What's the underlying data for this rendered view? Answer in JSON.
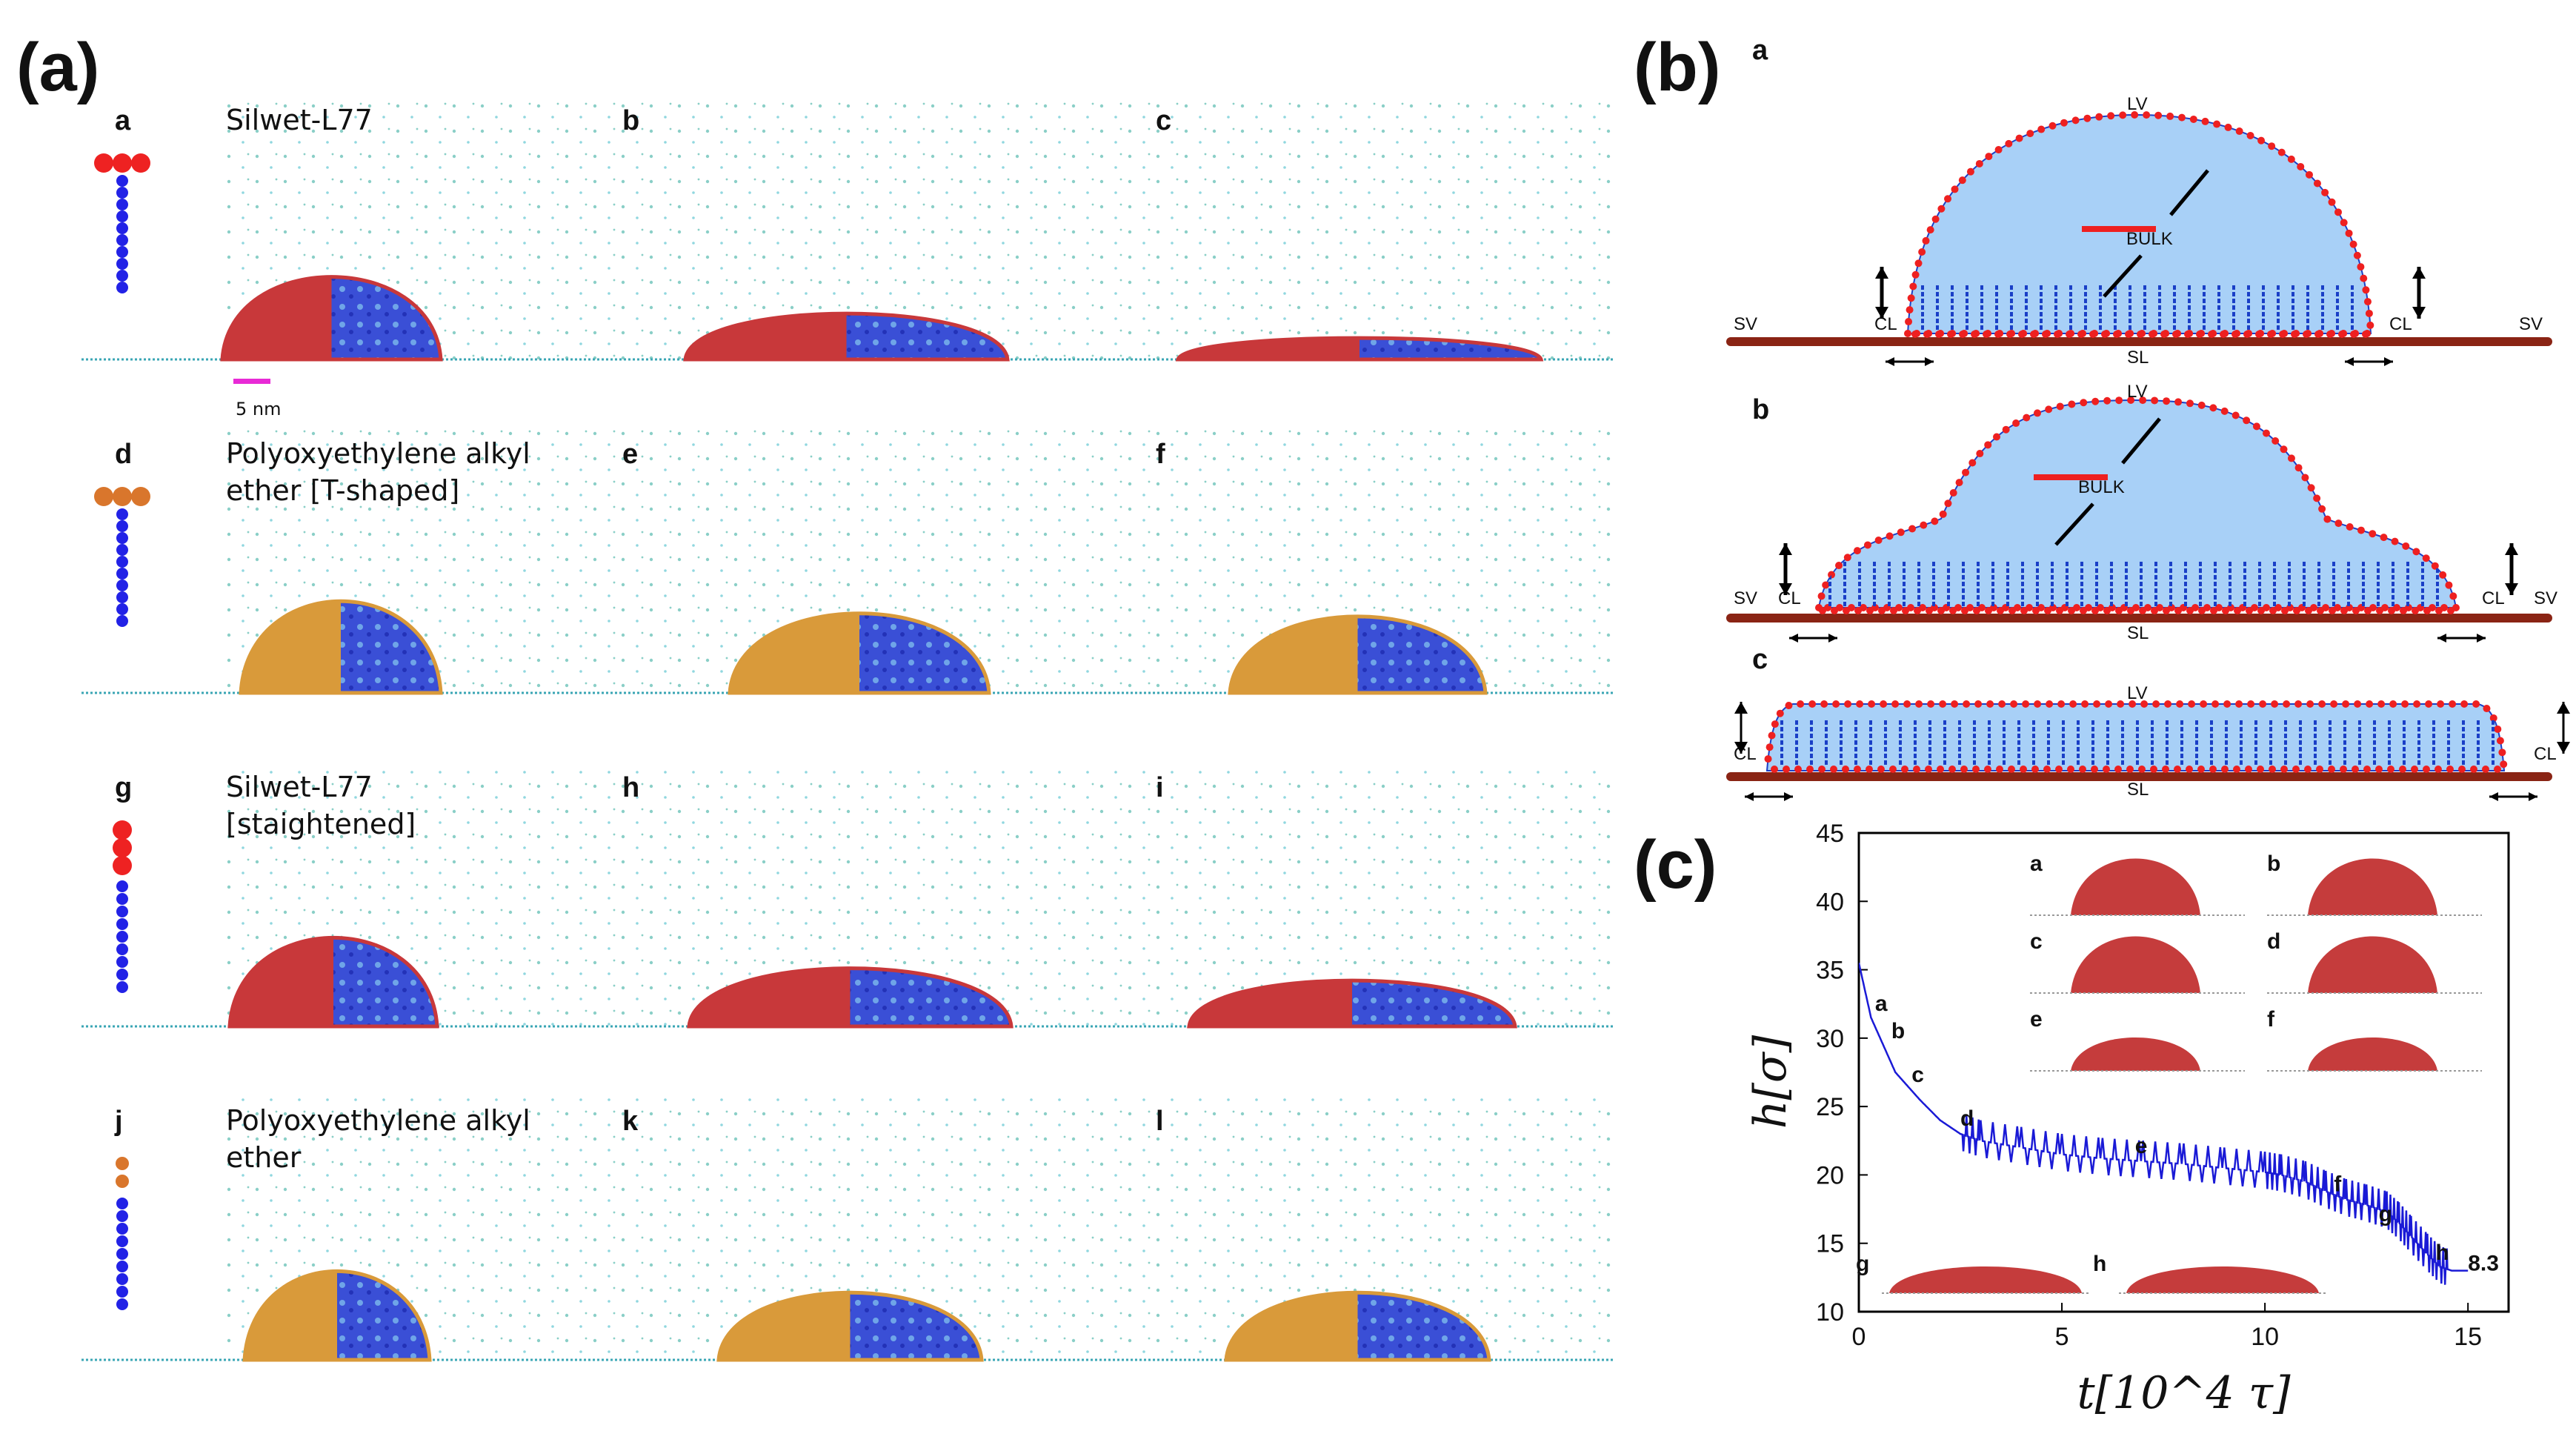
{
  "panel_a": {
    "label": "(a)",
    "rows": [
      {
        "letters": [
          "a",
          "b",
          "c"
        ],
        "caption_lines": [
          "Silwet-L77"
        ],
        "head_color": "#ee2222",
        "shape": "T",
        "fill": "#c8383a"
      },
      {
        "letters": [
          "d",
          "e",
          "f"
        ],
        "caption_lines": [
          "Polyoxyethylene alkyl",
          "ether [T-shaped]"
        ],
        "head_color": "#d9762c",
        "shape": "T",
        "fill": "#d99a3a"
      },
      {
        "letters": [
          "g",
          "h",
          "i"
        ],
        "caption_lines": [
          "Silwet-L77",
          "[staightened]"
        ],
        "head_color": "#ee2222",
        "shape": "line",
        "fill": "#c8383a"
      },
      {
        "letters": [
          "j",
          "k",
          "l"
        ],
        "caption_lines": [
          "Polyoxyethylene alkyl",
          "ether"
        ],
        "head_color": "#d9762c",
        "shape": "line",
        "fill": "#d99a3a"
      }
    ],
    "scale_bar": "5 nm"
  },
  "panel_b": {
    "label": "(b)",
    "schematics": [
      {
        "letter": "a",
        "labels": {
          "lv": "LV",
          "bulk": "BULK",
          "sv_left": "SV",
          "sv_right": "SV",
          "cl_left": "CL",
          "cl_right": "CL",
          "sl": "SL"
        }
      },
      {
        "letter": "b",
        "labels": {
          "lv": "LV",
          "bulk": "BULK",
          "sv_left": "SV",
          "sv_right": "SV",
          "cl_left": "CL",
          "cl_right": "CL",
          "sl": "SL"
        }
      },
      {
        "letter": "c",
        "labels": {
          "lv": "LV",
          "cl_left": "CL",
          "cl_right": "CL",
          "sl": "SL"
        }
      }
    ]
  },
  "panel_c": {
    "label": "(c)",
    "chart_data": {
      "type": "line",
      "title": "",
      "xlabel": "t[10^4 τ]",
      "ylabel": "h[σ]",
      "xlim": [
        0,
        16
      ],
      "ylim": [
        10,
        45
      ],
      "xticks": [
        0,
        5,
        10,
        15
      ],
      "yticks": [
        10,
        15,
        20,
        25,
        30,
        35,
        40,
        45
      ],
      "series": [
        {
          "name": "h",
          "color": "#1a1ad6",
          "x": [
            0,
            0.3,
            0.6,
            0.9,
            1.2,
            1.5,
            2.0,
            2.5,
            3.0,
            4.0,
            5.0,
            6.0,
            7.0,
            8.0,
            9.0,
            10.0,
            10.4,
            11.0,
            11.5,
            12.0,
            12.5,
            13.0,
            13.3,
            13.6,
            14.0,
            14.3,
            14.6,
            15.0
          ],
          "y": [
            35.5,
            31.5,
            29.5,
            27.5,
            26.5,
            25.5,
            24.0,
            23.0,
            22.5,
            22.0,
            21.5,
            21.2,
            21.0,
            20.8,
            20.5,
            20.2,
            20.0,
            19.5,
            18.8,
            18.2,
            17.8,
            17.3,
            16.5,
            15.5,
            14.2,
            13.3,
            13.0,
            13.0
          ]
        }
      ],
      "annotations": [
        {
          "text": "a",
          "x": 0.4,
          "y": 32.0
        },
        {
          "text": "b",
          "x": 0.8,
          "y": 30.0
        },
        {
          "text": "c",
          "x": 1.3,
          "y": 26.8
        },
        {
          "text": "d",
          "x": 2.5,
          "y": 23.6
        },
        {
          "text": "e",
          "x": 6.8,
          "y": 21.6
        },
        {
          "text": "f",
          "x": 11.7,
          "y": 18.8
        },
        {
          "text": "g",
          "x": 12.8,
          "y": 16.6
        },
        {
          "text": "h",
          "x": 14.2,
          "y": 13.8
        },
        {
          "text": "8.3",
          "x": 15.0,
          "y": 13.0
        }
      ],
      "insets": [
        "a",
        "b",
        "c",
        "d",
        "e",
        "f",
        "g",
        "h"
      ]
    }
  }
}
